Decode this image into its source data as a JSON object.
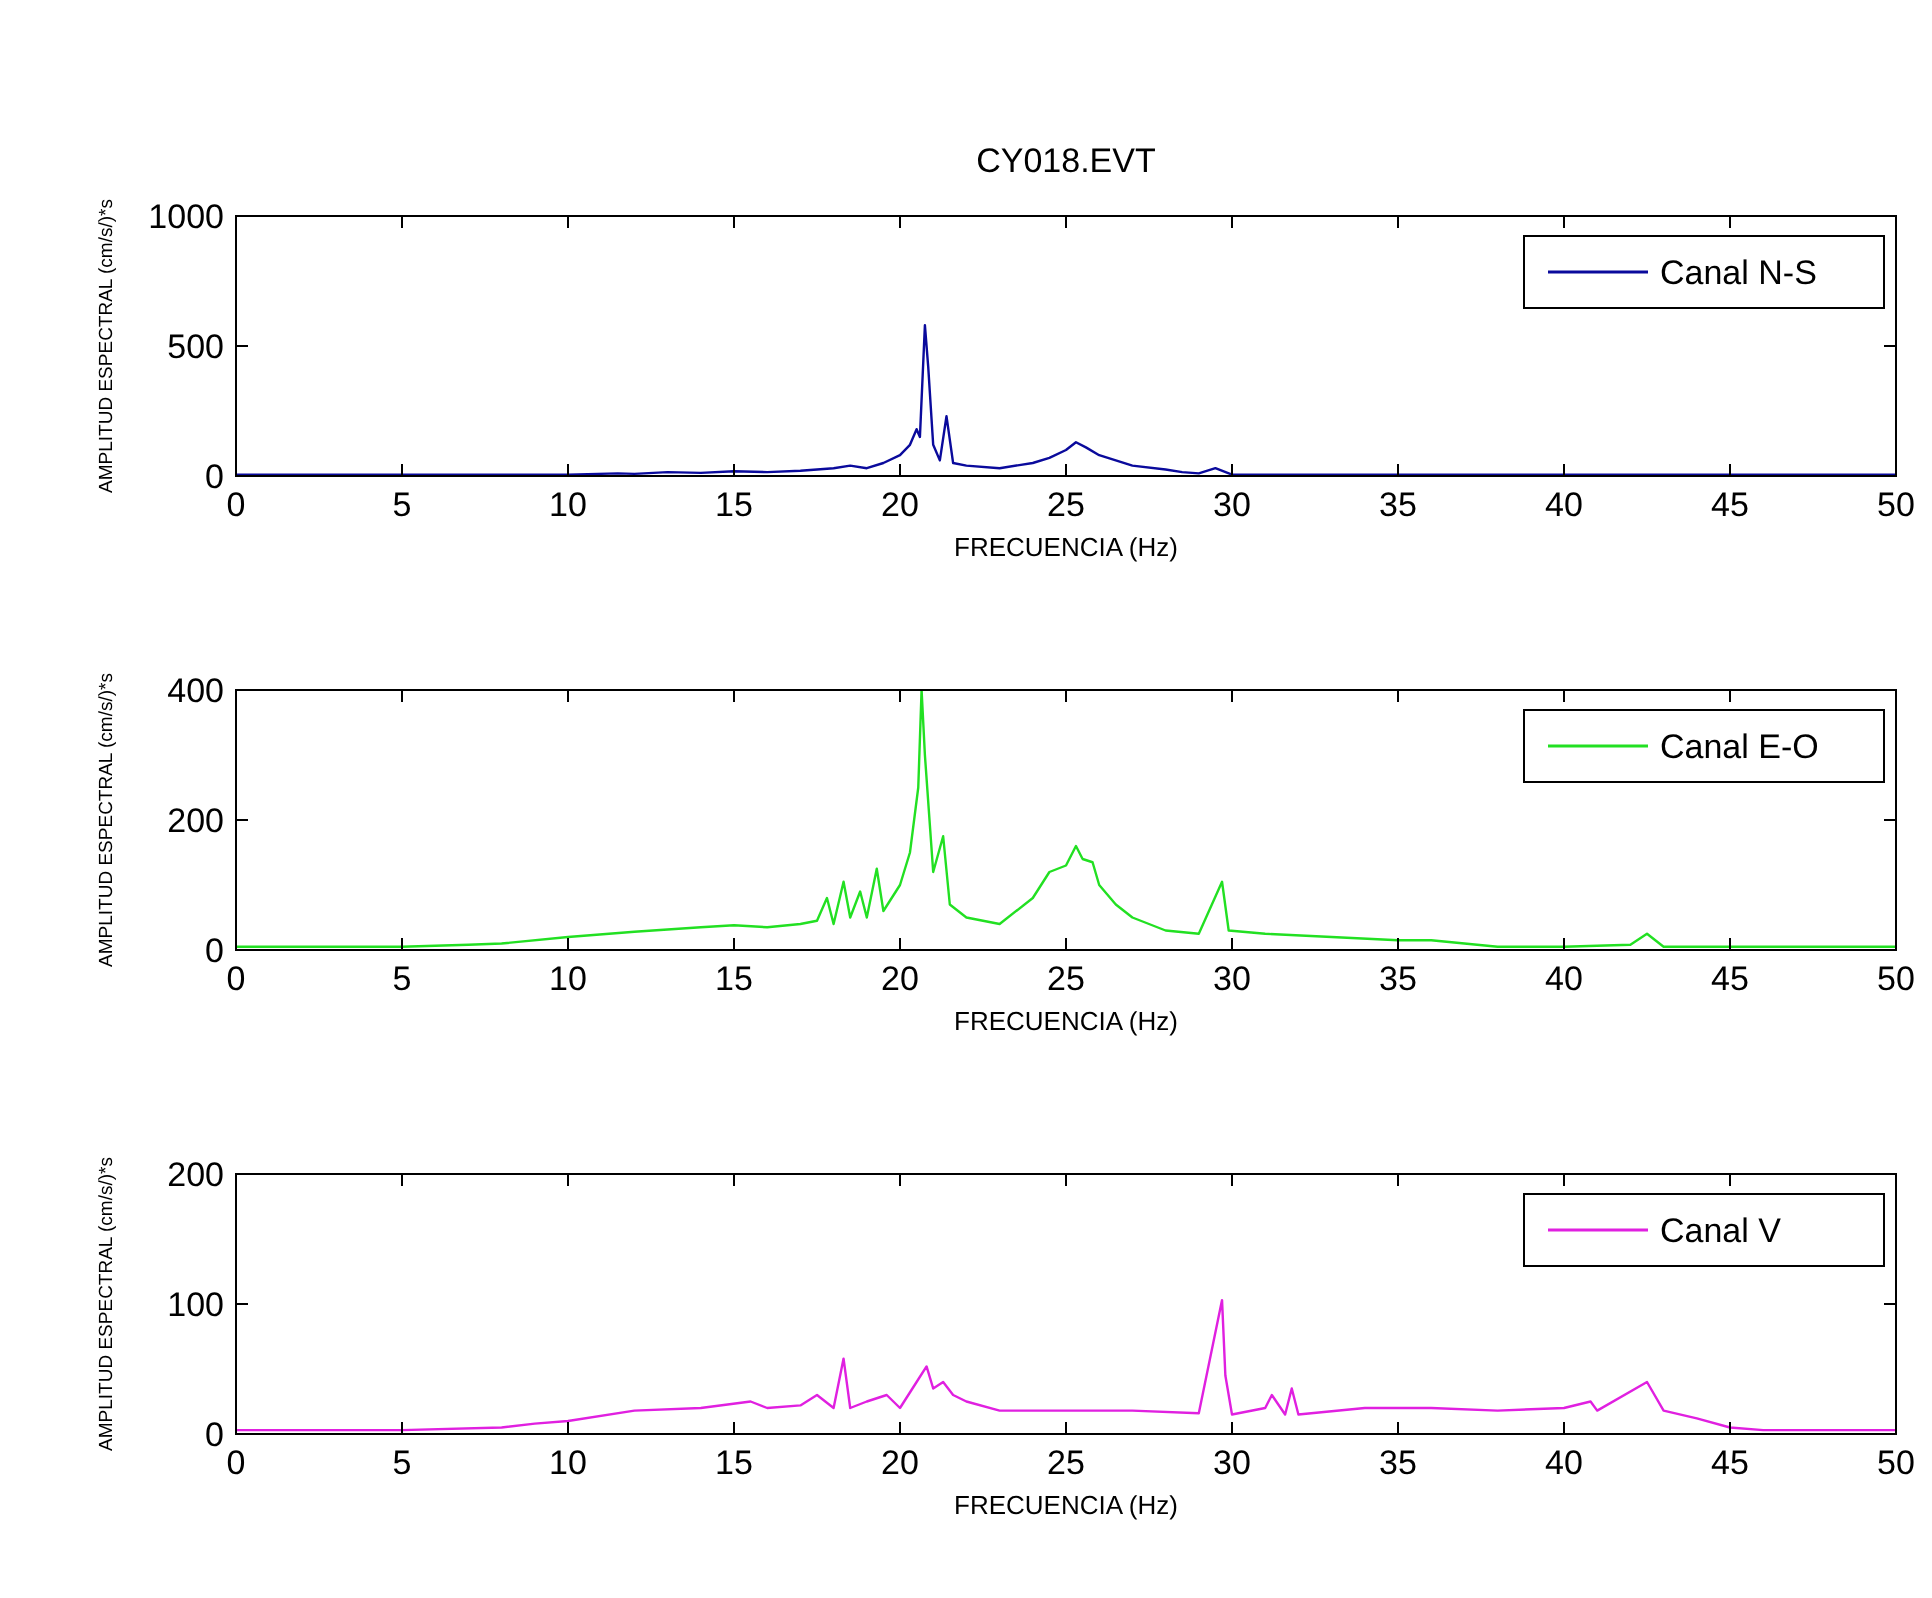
{
  "chart_data": [
    {
      "type": "line",
      "title": "CY018.EVT",
      "xlabel": "FRECUENCIA (Hz)",
      "ylabel": "AMPLITUD ESPECTRAL (cm/s/)*s",
      "xlim": [
        0,
        50
      ],
      "xticks": [
        0,
        5,
        10,
        15,
        20,
        25,
        30,
        35,
        40,
        45,
        50
      ],
      "ylim": [
        0,
        1000
      ],
      "yticks": [
        0,
        500,
        1000
      ],
      "legend": "top right",
      "grid": false,
      "series": [
        {
          "name": "Canal N-S",
          "color": "#0a0a9c",
          "x": [
            0,
            5,
            10,
            11.5,
            12,
            13,
            14,
            15,
            16,
            17,
            18,
            18.5,
            19,
            19.5,
            20,
            20.3,
            20.5,
            20.6,
            20.75,
            20.85,
            21,
            21.2,
            21.4,
            21.6,
            22,
            23,
            24,
            24.5,
            25,
            25.3,
            25.6,
            26,
            26.5,
            27,
            28,
            28.5,
            29,
            29.5,
            30,
            35,
            40,
            45,
            50
          ],
          "values": [
            5,
            5,
            5,
            10,
            8,
            15,
            12,
            18,
            15,
            20,
            30,
            40,
            30,
            50,
            80,
            120,
            180,
            150,
            580,
            420,
            120,
            60,
            230,
            50,
            40,
            30,
            50,
            70,
            100,
            130,
            110,
            80,
            60,
            40,
            25,
            15,
            10,
            30,
            5,
            5,
            5,
            5,
            5
          ]
        }
      ]
    },
    {
      "type": "line",
      "xlabel": "FRECUENCIA (Hz)",
      "ylabel": "AMPLITUD ESPECTRAL (cm/s/)*s",
      "xlim": [
        0,
        50
      ],
      "xticks": [
        0,
        5,
        10,
        15,
        20,
        25,
        30,
        35,
        40,
        45,
        50
      ],
      "ylim": [
        0,
        400
      ],
      "yticks": [
        0,
        200,
        400
      ],
      "legend": "top right",
      "grid": false,
      "series": [
        {
          "name": "Canal E-O",
          "color": "#22e022",
          "x": [
            0,
            5,
            7,
            8,
            10,
            12,
            14,
            15,
            16,
            17,
            17.5,
            17.8,
            18,
            18.3,
            18.5,
            18.8,
            19,
            19.3,
            19.5,
            20,
            20.3,
            20.55,
            20.65,
            20.75,
            21,
            21.3,
            21.5,
            22,
            23,
            24,
            24.5,
            25,
            25.3,
            25.5,
            25.8,
            26,
            26.5,
            27,
            28,
            29,
            29.7,
            29.9,
            31,
            33,
            35,
            36,
            37,
            38,
            40,
            42,
            42.5,
            43,
            45,
            50
          ],
          "values": [
            5,
            5,
            8,
            10,
            20,
            28,
            35,
            38,
            35,
            40,
            45,
            80,
            40,
            105,
            50,
            90,
            50,
            125,
            60,
            100,
            150,
            250,
            400,
            300,
            120,
            175,
            70,
            50,
            40,
            80,
            120,
            130,
            160,
            140,
            135,
            100,
            70,
            50,
            30,
            25,
            105,
            30,
            25,
            20,
            15,
            15,
            10,
            5,
            5,
            8,
            25,
            5,
            5,
            5
          ]
        }
      ]
    },
    {
      "type": "line",
      "xlabel": "FRECUENCIA (Hz)",
      "ylabel": "AMPLITUD ESPECTRAL (cm/s/)*s",
      "xlim": [
        0,
        50
      ],
      "xticks": [
        0,
        5,
        10,
        15,
        20,
        25,
        30,
        35,
        40,
        45,
        50
      ],
      "ylim": [
        0,
        200
      ],
      "yticks": [
        0,
        100,
        200
      ],
      "legend": "top right",
      "grid": false,
      "series": [
        {
          "name": "Canal V",
          "color": "#e020e0",
          "x": [
            0,
            5,
            8,
            9,
            10,
            12,
            14,
            15.5,
            16,
            17,
            17.5,
            18,
            18.3,
            18.5,
            19,
            19.6,
            20,
            20.5,
            20.8,
            21,
            21.3,
            21.6,
            22,
            23,
            25,
            27,
            29,
            29.7,
            29.8,
            30,
            31,
            31.2,
            31.6,
            31.8,
            32,
            34,
            36,
            38,
            40,
            40.8,
            41,
            42.5,
            43,
            44,
            45,
            46,
            50
          ],
          "values": [
            3,
            3,
            5,
            8,
            10,
            18,
            20,
            25,
            20,
            22,
            30,
            20,
            58,
            20,
            25,
            30,
            20,
            40,
            52,
            35,
            40,
            30,
            25,
            18,
            18,
            18,
            16,
            103,
            45,
            15,
            20,
            30,
            15,
            35,
            15,
            20,
            20,
            18,
            20,
            25,
            18,
            40,
            18,
            12,
            5,
            3,
            3
          ]
        }
      ]
    }
  ]
}
